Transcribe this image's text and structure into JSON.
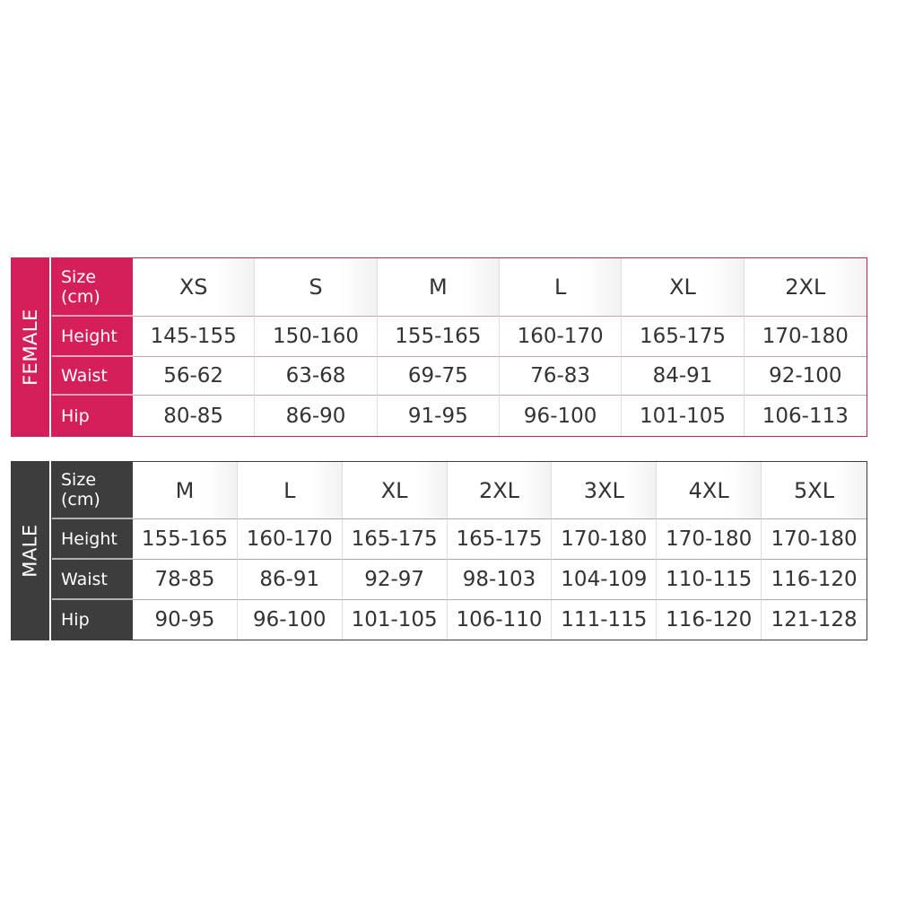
{
  "colors": {
    "female": "#d41f5a",
    "male": "#3d3d3d"
  },
  "female": {
    "label": "FEMALE",
    "row_labels": [
      "Size\n(cm)",
      "Height",
      "Waist",
      "Hip"
    ],
    "sizes": [
      "XS",
      "S",
      "M",
      "L",
      "XL",
      "2XL"
    ],
    "rows": [
      [
        "145-155",
        "150-160",
        "155-165",
        "160-170",
        "165-175",
        "170-180"
      ],
      [
        "56-62",
        "63-68",
        "69-75",
        "76-83",
        "84-91",
        "92-100"
      ],
      [
        "80-85",
        "86-90",
        "91-95",
        "96-100",
        "101-105",
        "106-113"
      ]
    ]
  },
  "male": {
    "label": "MALE",
    "row_labels": [
      "Size\n(cm)",
      "Height",
      "Waist",
      "Hip"
    ],
    "sizes": [
      "M",
      "L",
      "XL",
      "2XL",
      "3XL",
      "4XL",
      "5XL"
    ],
    "rows": [
      [
        "155-165",
        "160-170",
        "165-175",
        "165-175",
        "170-180",
        "170-180",
        "170-180"
      ],
      [
        "78-85",
        "86-91",
        "92-97",
        "98-103",
        "104-109",
        "110-115",
        "116-120"
      ],
      [
        "90-95",
        "96-100",
        "101-105",
        "106-110",
        "111-115",
        "116-120",
        "121-128"
      ]
    ]
  }
}
